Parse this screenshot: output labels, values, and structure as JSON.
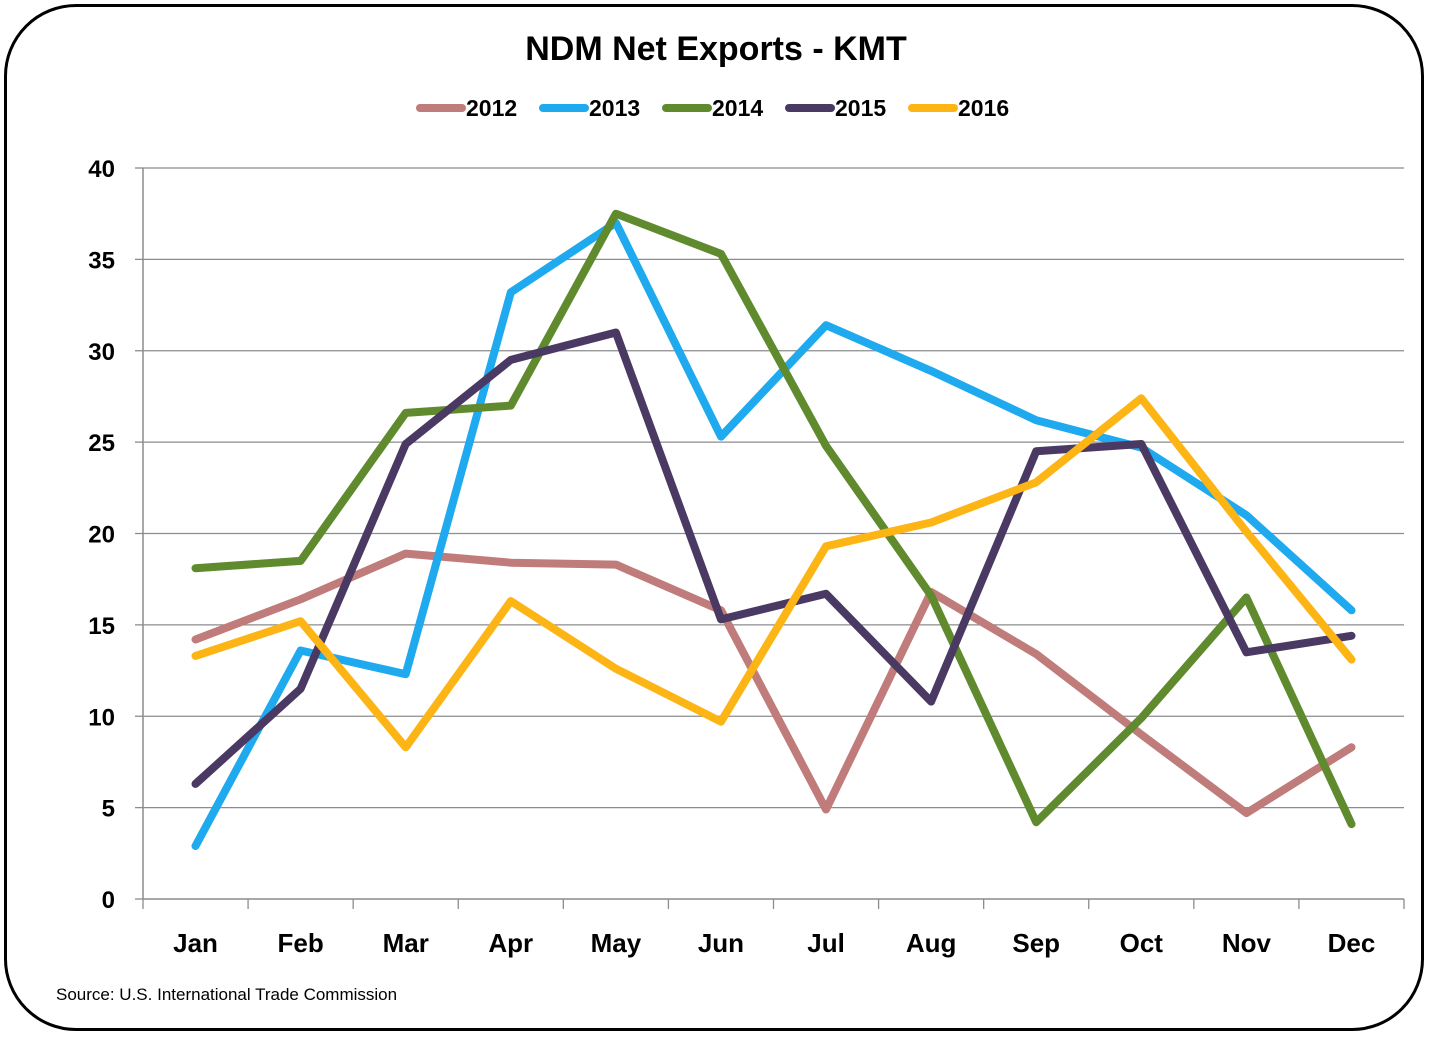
{
  "chart_data": {
    "type": "line",
    "title": "NDM Net Exports - KMT",
    "xlabel": "",
    "ylabel": "",
    "categories": [
      "Jan",
      "Feb",
      "Mar",
      "Apr",
      "May",
      "Jun",
      "Jul",
      "Aug",
      "Sep",
      "Oct",
      "Nov",
      "Dec"
    ],
    "ylim": [
      0,
      40
    ],
    "yticks": [
      "0",
      "5",
      "10",
      "15",
      "20",
      "25",
      "30",
      "35",
      "40"
    ],
    "grid": "horizontal",
    "legend_position": "top",
    "series": [
      {
        "name": "2012",
        "color": "#C07B7B",
        "values": [
          14.2,
          16.4,
          18.9,
          18.4,
          18.3,
          15.8,
          4.9,
          16.8,
          13.4,
          9.0,
          4.7,
          8.3
        ]
      },
      {
        "name": "2013",
        "color": "#1FA9EE",
        "values": [
          2.9,
          13.6,
          12.3,
          33.2,
          37.0,
          25.3,
          31.4,
          28.9,
          26.2,
          24.7,
          21.0,
          15.8
        ]
      },
      {
        "name": "2014",
        "color": "#5F8A2D",
        "values": [
          18.1,
          18.5,
          26.6,
          27.0,
          37.5,
          35.3,
          24.8,
          16.6,
          4.2,
          9.9,
          16.5,
          4.1
        ]
      },
      {
        "name": "2015",
        "color": "#4A3A63",
        "values": [
          6.3,
          11.5,
          24.9,
          29.5,
          31.0,
          15.3,
          16.7,
          10.8,
          24.5,
          24.9,
          13.5,
          14.4
        ]
      },
      {
        "name": "2016",
        "color": "#FDB515",
        "values": [
          13.3,
          15.2,
          8.3,
          16.3,
          12.6,
          9.7,
          19.3,
          20.6,
          22.8,
          27.4,
          20.1,
          13.1
        ]
      }
    ]
  },
  "source_text": "Source: U.S. International Trade Commission"
}
